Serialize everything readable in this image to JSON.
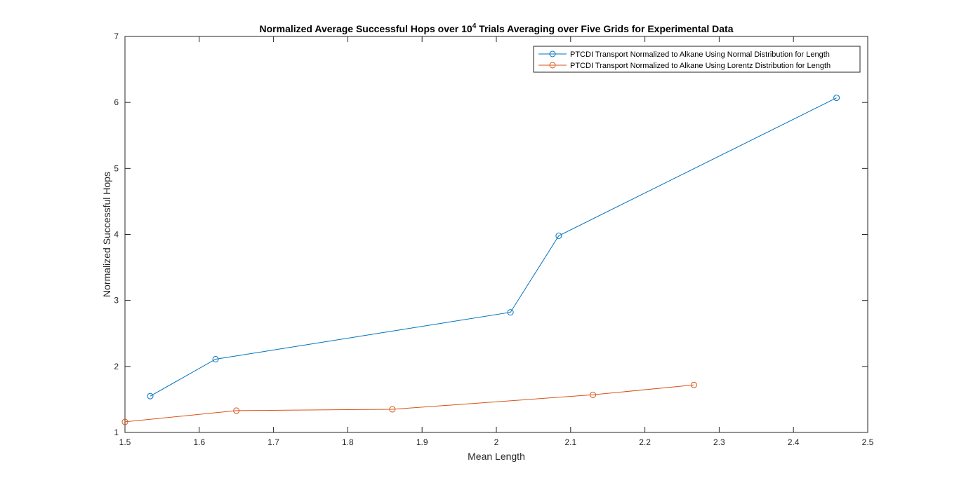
{
  "chart_data": {
    "type": "line",
    "title": {
      "prefix": "Normalized Average Successful Hops over 10",
      "superscript": "4",
      "suffix": " Trials Averaging over Five Grids for Experimental Data"
    },
    "xlabel": "Mean Length",
    "ylabel": "Normalized Successful Hops",
    "xlim": [
      1.5,
      2.5
    ],
    "ylim": [
      1,
      7
    ],
    "xticks": [
      1.5,
      1.6,
      1.7,
      1.8,
      1.9,
      2,
      2.1,
      2.2,
      2.3,
      2.4,
      2.5
    ],
    "xtick_labels": [
      "1.5",
      "1.6",
      "1.7",
      "1.8",
      "1.9",
      "2",
      "2.1",
      "2.2",
      "2.3",
      "2.4",
      "2.5"
    ],
    "yticks": [
      1,
      2,
      3,
      4,
      5,
      6,
      7
    ],
    "ytick_labels": [
      "1",
      "2",
      "3",
      "4",
      "5",
      "6",
      "7"
    ],
    "grid": false,
    "legend_position": "top-right",
    "series": [
      {
        "name": "PTCDI Transport Normalized to Alkane Using Normal Distribution for Length",
        "color": "#0072BD",
        "marker": "circle",
        "x": [
          1.534,
          1.622,
          2.019,
          2.084,
          2.458
        ],
        "y": [
          1.55,
          2.11,
          2.82,
          3.98,
          6.07
        ]
      },
      {
        "name": "PTCDI Transport Normalized to Alkane Using Lorentz Distribution for Length",
        "color": "#D95319",
        "marker": "circle",
        "x": [
          1.5,
          1.65,
          1.86,
          2.13,
          2.266
        ],
        "y": [
          1.16,
          1.33,
          1.35,
          1.57,
          1.72
        ]
      }
    ]
  }
}
